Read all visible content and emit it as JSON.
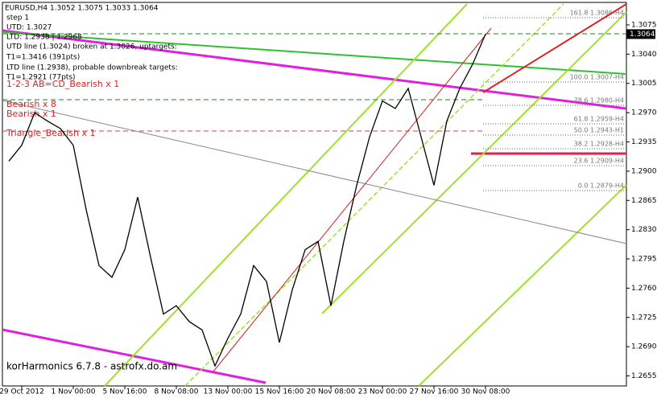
{
  "chart_data": {
    "type": "line",
    "title": "EURUSD,H4 1.3052 1.3075 1.3033 1.3064",
    "categories": [
      null,
      "29 Oct 2012",
      null,
      null,
      null,
      "1 Nov 00:00",
      null,
      null,
      null,
      "5 Nov 16:00",
      null,
      null,
      null,
      "8 Nov 08:00",
      null,
      null,
      null,
      "13 Nov 00:00",
      null,
      null,
      null,
      "15 Nov 16:00",
      null,
      null,
      null,
      "20 Nov 08:00",
      null,
      null,
      null,
      "23 Nov 00:00",
      null,
      null,
      null,
      "27 Nov 16:00",
      null,
      null,
      null,
      "30 Nov 08:00"
    ],
    "series": [
      {
        "name": "EURUSD,H4",
        "color": "#000000",
        "values": [
          1.2912,
          1.2931,
          1.297,
          1.296,
          1.2951,
          1.2931,
          1.2854,
          1.2787,
          1.2773,
          1.2806,
          1.2869,
          1.2797,
          1.2729,
          1.2739,
          1.272,
          1.271,
          1.2667,
          1.27,
          1.2729,
          1.2787,
          1.2768,
          1.2695,
          1.2758,
          1.2806,
          1.2816,
          1.2739,
          1.2816,
          1.2883,
          1.2941,
          1.2984,
          1.2975,
          1.2999,
          1.2941,
          1.2883,
          1.296,
          1.2999,
          1.3028,
          1.3064
        ]
      }
    ],
    "ylim": [
      1.2643,
      1.31
    ],
    "yticks": [
      {
        "value": 1.2655,
        "label": "1.2655"
      },
      {
        "value": 1.269,
        "label": "1.2690"
      },
      {
        "value": 1.2725,
        "label": "1.2725"
      },
      {
        "value": 1.276,
        "label": "1.2760"
      },
      {
        "value": 1.2795,
        "label": "1.2795"
      },
      {
        "value": 1.283,
        "label": "1.2830"
      },
      {
        "value": 1.2865,
        "label": "1.2865"
      },
      {
        "value": 1.29,
        "label": "1.2900"
      },
      {
        "value": 1.2935,
        "label": "1.2935"
      },
      {
        "value": 1.297,
        "label": "1.2970"
      },
      {
        "value": 1.3005,
        "label": "1.3005"
      },
      {
        "value": 1.304,
        "label": "1.3040"
      },
      {
        "value": 1.3075,
        "label": "1.3075"
      }
    ],
    "current_price": {
      "value": 1.3064,
      "label": "1.3064"
    },
    "annotations": [
      "step 1",
      "UTD: 1.3027",
      "LTD: 1.2938 | 1.2968",
      "UTD line (1.3024) broken at 1.3026, uptargets:",
      "T1=1.3416 (391pts)",
      "LTD line (1.2938), probable downbreak targets:",
      "T1=1.2921 (77pts)",
      "1-2-3 AB=CD_Bearish x 1",
      "Bearish x 8",
      "Bearish x 1",
      "Triangle_Bearish x 1"
    ],
    "fib_labels": [
      "161.8 1.3086-H4",
      "100.0 1.3007-H4",
      "78.6 1.2980-H4",
      "61.8 1.2959-H4",
      "50.0 1.2943-H1",
      "38.2 1.2928-H4",
      "23.6 1.2909-H4",
      "0.0 1.2879-H4"
    ],
    "footer": "korHarmonics 6.7.8 - astrofx.do.am"
  }
}
